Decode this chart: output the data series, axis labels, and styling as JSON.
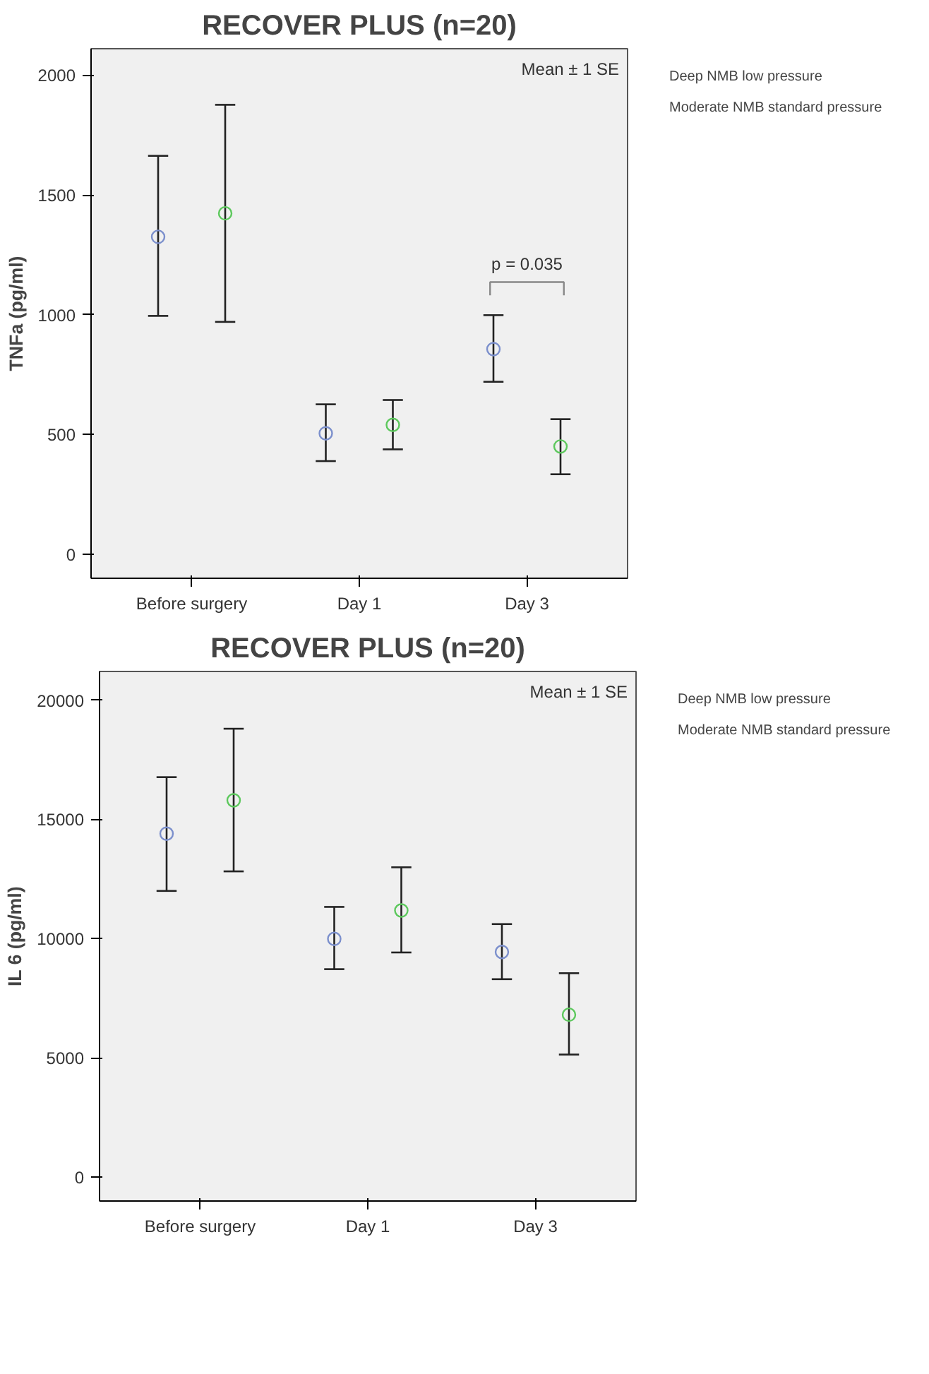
{
  "chart_data": [
    {
      "type": "scatter",
      "title": "RECOVER PLUS (n=20)",
      "ylabel": "TNFa (pg/ml)",
      "categories": [
        "Before surgery",
        "Day 1",
        "Day 3"
      ],
      "ylim": [
        -100,
        2110
      ],
      "yticks": [
        0,
        500,
        1000,
        1500,
        2000
      ],
      "grid": false,
      "legend": "right",
      "marker": "circle",
      "annotations": [
        "Mean ± 1 SE",
        "p = 0.035"
      ],
      "series": [
        {
          "name": "Deep NMB low pressure",
          "color": "#7b8fcc",
          "values": [
            1325,
            505,
            856
          ],
          "errors": [
            [
              995,
              1663
            ],
            [
              389,
              626
            ],
            [
              720,
              998
            ]
          ]
        },
        {
          "name": "Moderate NMB standard pressure",
          "color": "#5cc85c",
          "values": [
            1423,
            540,
            450
          ],
          "errors": [
            [
              970,
              1876
            ],
            [
              438,
              644
            ],
            [
              334,
              564
            ]
          ]
        }
      ]
    },
    {
      "type": "scatter",
      "title": "RECOVER PLUS (n=20)",
      "ylabel": "IL 6 (pg/ml)",
      "categories": [
        "Before surgery",
        "Day 1",
        "Day 3"
      ],
      "ylim": [
        -1000,
        21200
      ],
      "yticks": [
        0,
        5000,
        10000,
        15000,
        20000
      ],
      "grid": false,
      "legend": "right",
      "marker": "circle",
      "annotations": [
        "Mean ± 1 SE"
      ],
      "series": [
        {
          "name": "Deep NMB low pressure",
          "color": "#7b8fcc",
          "values": [
            14400,
            9990,
            9440
          ],
          "errors": [
            [
              12000,
              16770
            ],
            [
              8720,
              11330
            ],
            [
              8300,
              10610
            ]
          ]
        },
        {
          "name": "Moderate NMB standard pressure",
          "color": "#5cc85c",
          "values": [
            15800,
            11180,
            6810
          ],
          "errors": [
            [
              12820,
              18800
            ],
            [
              9420,
              12990
            ],
            [
              5140,
              8550
            ]
          ]
        }
      ]
    }
  ]
}
